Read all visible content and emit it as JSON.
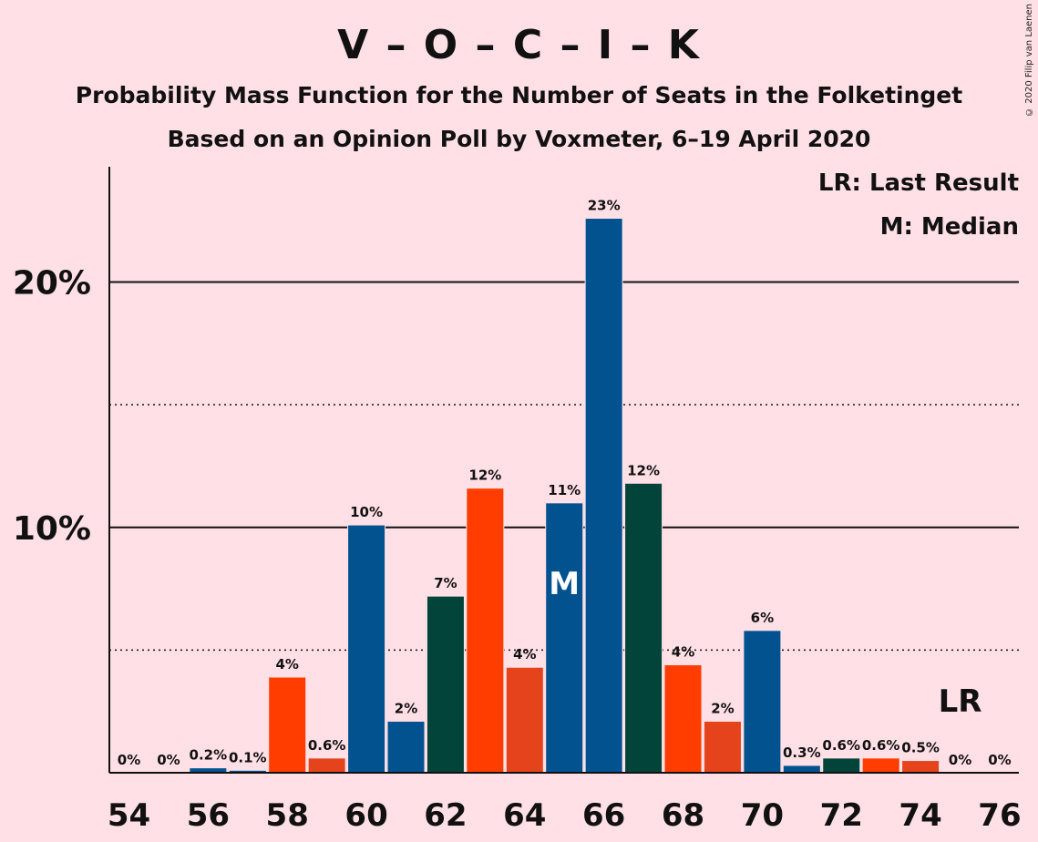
{
  "header": {
    "title": "V – O – C – I – K",
    "subtitle_line1": "Probability Mass Function for the Number of Seats in the Folketinget",
    "subtitle_line2": "Based on an Opinion Poll by Voxmeter, 6–19 April 2020",
    "copyright": "© 2020 Filip van Laenen"
  },
  "legend": {
    "last_result": "LR: Last Result",
    "median": "M: Median"
  },
  "chart_data": {
    "type": "bar",
    "categories": [
      54,
      55,
      56,
      57,
      58,
      59,
      60,
      61,
      62,
      63,
      64,
      65,
      66,
      67,
      68,
      69,
      70,
      71,
      72,
      73,
      74,
      75,
      76
    ],
    "values": [
      0,
      0,
      0.2,
      0.1,
      3.9,
      0.6,
      10.1,
      2.1,
      7.2,
      11.6,
      4.3,
      11.0,
      22.6,
      11.8,
      4.4,
      2.1,
      5.8,
      0.3,
      0.6,
      0.6,
      0.5,
      0,
      0
    ],
    "labels": [
      "0%",
      "0%",
      "0.2%",
      "0.1%",
      "4%",
      "0.6%",
      "10%",
      "2%",
      "7%",
      "12%",
      "4%",
      "11%",
      "23%",
      "12%",
      "4%",
      "2%",
      "6%",
      "0.3%",
      "0.6%",
      "0.6%",
      "0.5%",
      "0%",
      "0%"
    ],
    "colors": [
      "#02528f",
      "#02528f",
      "#02528f",
      "#02528f",
      "#ff3d00",
      "#e5431c",
      "#02528f",
      "#02528f",
      "#02443a",
      "#ff3d00",
      "#e5431c",
      "#02528f",
      "#02528f",
      "#02443a",
      "#ff3d00",
      "#e5431c",
      "#02528f",
      "#02528f",
      "#02443a",
      "#ff3d00",
      "#e5431c",
      "#02528f",
      "#02528f"
    ],
    "x_ticks": [
      54,
      56,
      58,
      60,
      62,
      64,
      66,
      68,
      70,
      72,
      74,
      76
    ],
    "y_ticks": [
      {
        "value": 10,
        "label": "10%"
      },
      {
        "value": 20,
        "label": "20%"
      }
    ],
    "dotted_gridlines": [
      5,
      15
    ],
    "ylim": [
      0,
      24.7
    ],
    "median_seat": 65,
    "median_marker": "M",
    "last_result_seat": 75,
    "last_result_marker": "LR"
  }
}
